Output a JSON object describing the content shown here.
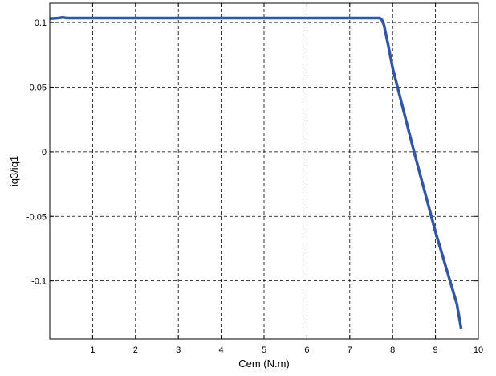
{
  "chart_data": {
    "type": "line",
    "xlabel": "Cem (N.m)",
    "ylabel": "iq3/iq1",
    "xlim": [
      0,
      10
    ],
    "ylim": [
      -0.145,
      0.115
    ],
    "xticks": [
      1,
      2,
      3,
      4,
      5,
      6,
      7,
      8,
      9,
      10
    ],
    "yticks": [
      0.1,
      0.05,
      0,
      -0.05,
      -0.1
    ],
    "ytick_labels": [
      "0.1",
      "0.05",
      "0",
      "-0.05",
      "-0.1"
    ],
    "grid": true,
    "series": [
      {
        "color": "#3355a5",
        "x": [
          0,
          0.2,
          0.3,
          0.4,
          0.6,
          1,
          2,
          3,
          4,
          5,
          6,
          7,
          7.5,
          7.7,
          7.75,
          7.8,
          7.9,
          8,
          8.5,
          9,
          9.5,
          9.6
        ],
        "y": [
          0.103,
          0.1035,
          0.104,
          0.1035,
          0.1035,
          0.1035,
          0.1035,
          0.1035,
          0.1035,
          0.1035,
          0.1035,
          0.1035,
          0.1035,
          0.1035,
          0.102,
          0.098,
          0.082,
          0.065,
          0.0,
          -0.062,
          -0.118,
          -0.137
        ]
      }
    ]
  }
}
